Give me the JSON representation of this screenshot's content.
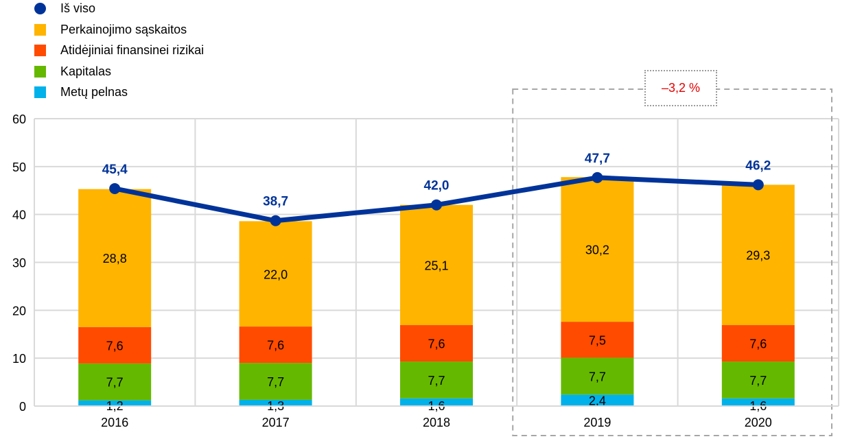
{
  "chart_data": {
    "type": "bar",
    "stacked": true,
    "categories": [
      "2016",
      "2017",
      "2018",
      "2019",
      "2020"
    ],
    "ylim": [
      0,
      60
    ],
    "yticks": [
      0,
      10,
      20,
      30,
      40,
      50,
      60
    ],
    "grid": true,
    "legend_position": "top-left",
    "series": [
      {
        "name": "Metų pelnas",
        "color": "#00b1ea",
        "values": [
          1.2,
          1.3,
          1.6,
          2.4,
          1.6
        ],
        "labels": [
          "1,2",
          "1,3",
          "1,6",
          "2,4",
          "1,6"
        ]
      },
      {
        "name": "Kapitalas",
        "color": "#65b800",
        "values": [
          7.7,
          7.7,
          7.7,
          7.7,
          7.7
        ],
        "labels": [
          "7,7",
          "7,7",
          "7,7",
          "7,7",
          "7,7"
        ]
      },
      {
        "name": "Atidėjiniai finansinei rizikai",
        "color": "#ff4b00",
        "values": [
          7.6,
          7.6,
          7.6,
          7.5,
          7.6
        ],
        "labels": [
          "7,6",
          "7,6",
          "7,6",
          "7,5",
          "7,6"
        ]
      },
      {
        "name": "Perkainojimo sąskaitos",
        "color": "#ffb400",
        "values": [
          28.8,
          22.0,
          25.1,
          30.2,
          29.3
        ],
        "labels": [
          "28,8",
          "22,0",
          "25,1",
          "30,2",
          "29,3"
        ]
      }
    ],
    "line": {
      "name": "Iš viso",
      "color": "#003399",
      "values": [
        45.4,
        38.7,
        42.0,
        47.7,
        46.2
      ],
      "labels": [
        "45,4",
        "38,7",
        "42,0",
        "47,7",
        "46,2"
      ]
    },
    "highlight": {
      "categories": [
        "2019",
        "2020"
      ],
      "label": "–3,2 %"
    }
  },
  "legend": [
    {
      "label": "Iš viso",
      "color": "#003399",
      "shape": "dot"
    },
    {
      "label": "Perkainojimo sąskaitos",
      "color": "#ffb400",
      "shape": "square"
    },
    {
      "label": "Atidėjiniai finansinei rizikai",
      "color": "#ff4b00",
      "shape": "square"
    },
    {
      "label": "Kapitalas",
      "color": "#65b800",
      "shape": "square"
    },
    {
      "label": "Metų pelnas",
      "color": "#00b1ea",
      "shape": "square"
    }
  ]
}
